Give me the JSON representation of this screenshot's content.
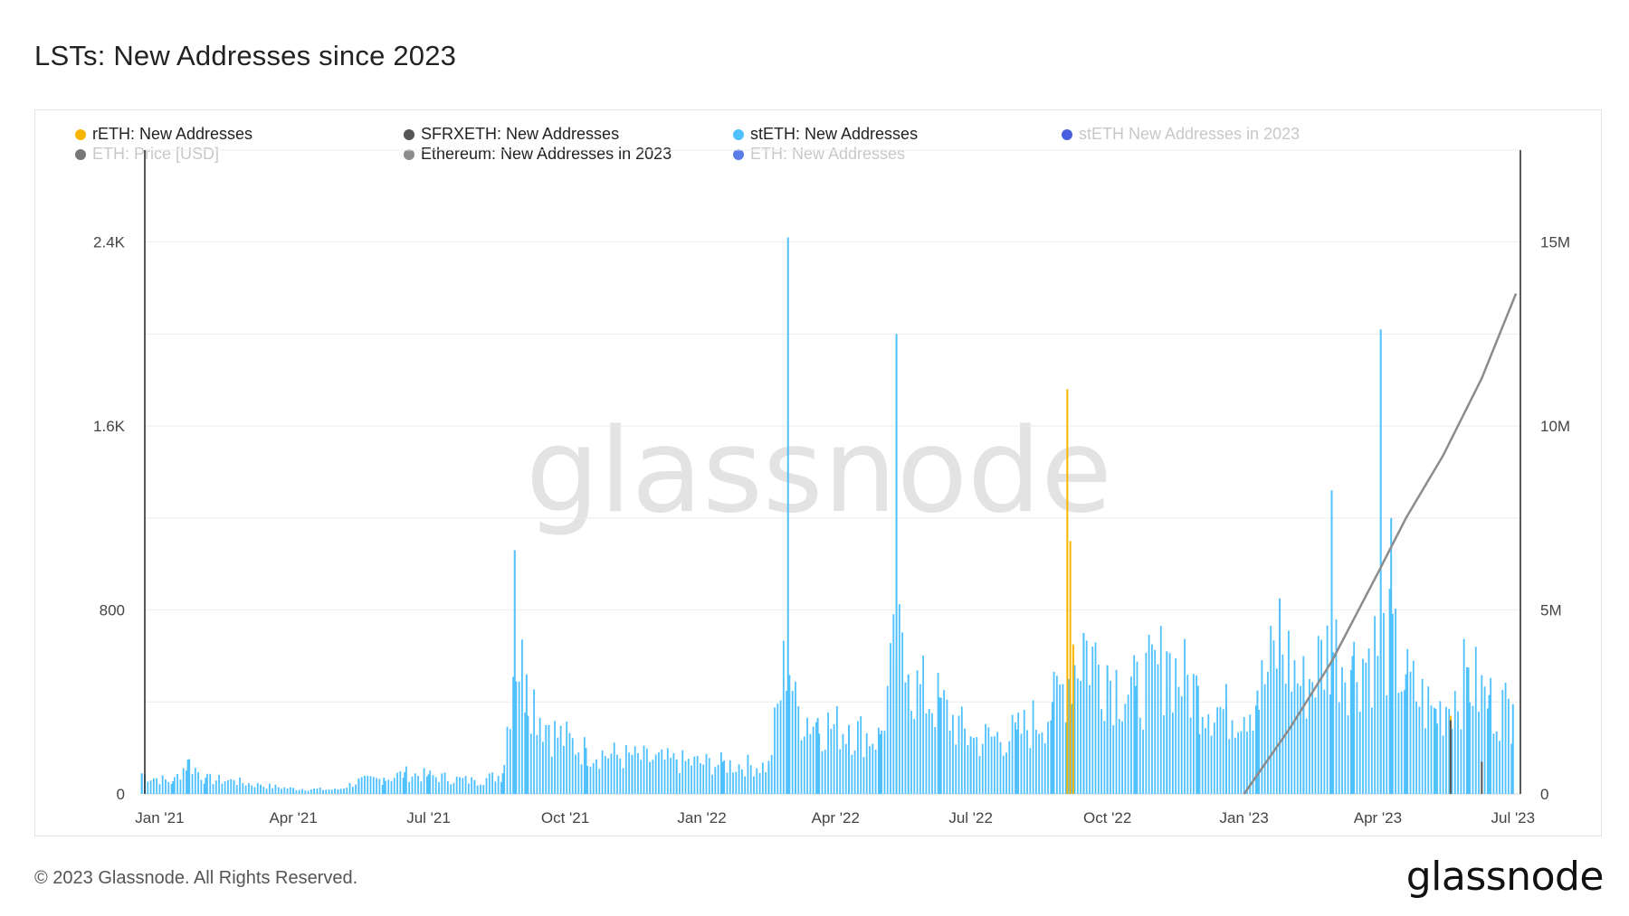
{
  "title": "LSTs: New Addresses since 2023",
  "footer": "© 2023 Glassnode. All Rights Reserved.",
  "brand": "glassnode",
  "watermark": "glassnode",
  "legend": [
    {
      "label": "rETH: New Addresses",
      "color": "#f7b500",
      "active": true
    },
    {
      "label": "SFRXETH: New Addresses",
      "color": "#555555",
      "active": true
    },
    {
      "label": "stETH: New Addresses",
      "color": "#4fc1ff",
      "active": true
    },
    {
      "label": "stETH New Addresses in 2023",
      "color": "#4a5fe0",
      "active": false
    },
    {
      "label": "ETH: Price [USD]",
      "color": "#777777",
      "active": false
    },
    {
      "label": "Ethereum: New Addresses in 2023",
      "color": "#8c8c8c",
      "active": true
    },
    {
      "label": "ETH: New Addresses",
      "color": "#5b7be8",
      "active": false
    }
  ],
  "chart_data": {
    "type": "bar",
    "x_ticks": [
      "Jan '21",
      "Apr '21",
      "Jul '21",
      "Oct '21",
      "Jan '22",
      "Apr '22",
      "Jul '22",
      "Oct '22",
      "Jan '23",
      "Apr '23",
      "Jul '23"
    ],
    "y_left_ticks": [
      "0",
      "800",
      "1.6K",
      "2.4K"
    ],
    "y_right_ticks": [
      "0",
      "5M",
      "10M",
      "15M"
    ],
    "y_left_range": [
      0,
      2800
    ],
    "y_right_range": [
      0,
      17500000
    ],
    "grid": true,
    "legend_position": "top",
    "series": [
      {
        "name": "stETH: New Addresses",
        "kind": "bar",
        "axis": "left",
        "color": "#4fc1ff",
        "points": [
          [
            "2020-12-20",
            90
          ],
          [
            "2021-01-10",
            55
          ],
          [
            "2021-01-20",
            150
          ],
          [
            "2021-02-01",
            70
          ],
          [
            "2021-02-20",
            60
          ],
          [
            "2021-03-10",
            40
          ],
          [
            "2021-04-01",
            25
          ],
          [
            "2021-05-01",
            20
          ],
          [
            "2021-05-15",
            60
          ],
          [
            "2021-06-01",
            70
          ],
          [
            "2021-06-15",
            95
          ],
          [
            "2021-07-01",
            85
          ],
          [
            "2021-08-01",
            60
          ],
          [
            "2021-08-20",
            90
          ],
          [
            "2021-08-28",
            1060
          ],
          [
            "2021-09-05",
            520
          ],
          [
            "2021-09-20",
            300
          ],
          [
            "2021-10-15",
            200
          ],
          [
            "2021-11-15",
            170
          ],
          [
            "2021-12-15",
            150
          ],
          [
            "2022-01-15",
            140
          ],
          [
            "2022-02-15",
            130
          ],
          [
            "2022-02-28",
            2420
          ],
          [
            "2022-03-05",
            400
          ],
          [
            "2022-03-20",
            330
          ],
          [
            "2022-04-10",
            300
          ],
          [
            "2022-05-01",
            260
          ],
          [
            "2022-05-12",
            2000
          ],
          [
            "2022-05-20",
            520
          ],
          [
            "2022-06-10",
            420
          ],
          [
            "2022-07-01",
            250
          ],
          [
            "2022-08-01",
            280
          ],
          [
            "2022-08-25",
            400
          ],
          [
            "2022-09-15",
            700
          ],
          [
            "2022-10-01",
            560
          ],
          [
            "2022-10-20",
            470
          ],
          [
            "2022-11-10",
            620
          ],
          [
            "2022-12-01",
            470
          ],
          [
            "2022-12-20",
            380
          ],
          [
            "2023-01-10",
            450
          ],
          [
            "2023-01-25",
            850
          ],
          [
            "2023-02-10",
            500
          ],
          [
            "2023-03-01",
            1320
          ],
          [
            "2023-03-15",
            600
          ],
          [
            "2023-04-03",
            2020
          ],
          [
            "2023-04-10",
            1200
          ],
          [
            "2023-04-20",
            520
          ],
          [
            "2023-05-10",
            370
          ],
          [
            "2023-06-01",
            550
          ],
          [
            "2023-06-15",
            430
          ],
          [
            "2023-07-01",
            390
          ]
        ]
      },
      {
        "name": "rETH: New Addresses",
        "kind": "bar",
        "axis": "left",
        "color": "#f7b500",
        "points": [
          [
            "2022-09-04",
            1760
          ],
          [
            "2022-09-06",
            1100
          ],
          [
            "2022-09-08",
            650
          ],
          [
            "2023-05-20",
            340
          ]
        ]
      },
      {
        "name": "SFRXETH: New Addresses",
        "kind": "bar",
        "axis": "left",
        "color": "#555555",
        "points": [
          [
            "2023-05-20",
            320
          ],
          [
            "2023-06-10",
            140
          ]
        ]
      },
      {
        "name": "Ethereum: New Addresses in 2023",
        "kind": "line",
        "axis": "right",
        "color": "#8c8c8c",
        "points": [
          [
            "2023-01-01",
            0
          ],
          [
            "2023-02-01",
            1800000
          ],
          [
            "2023-03-01",
            3600000
          ],
          [
            "2023-04-01",
            6000000
          ],
          [
            "2023-04-20",
            7500000
          ],
          [
            "2023-05-15",
            9200000
          ],
          [
            "2023-06-10",
            11300000
          ],
          [
            "2023-07-03",
            13600000
          ]
        ]
      }
    ]
  }
}
